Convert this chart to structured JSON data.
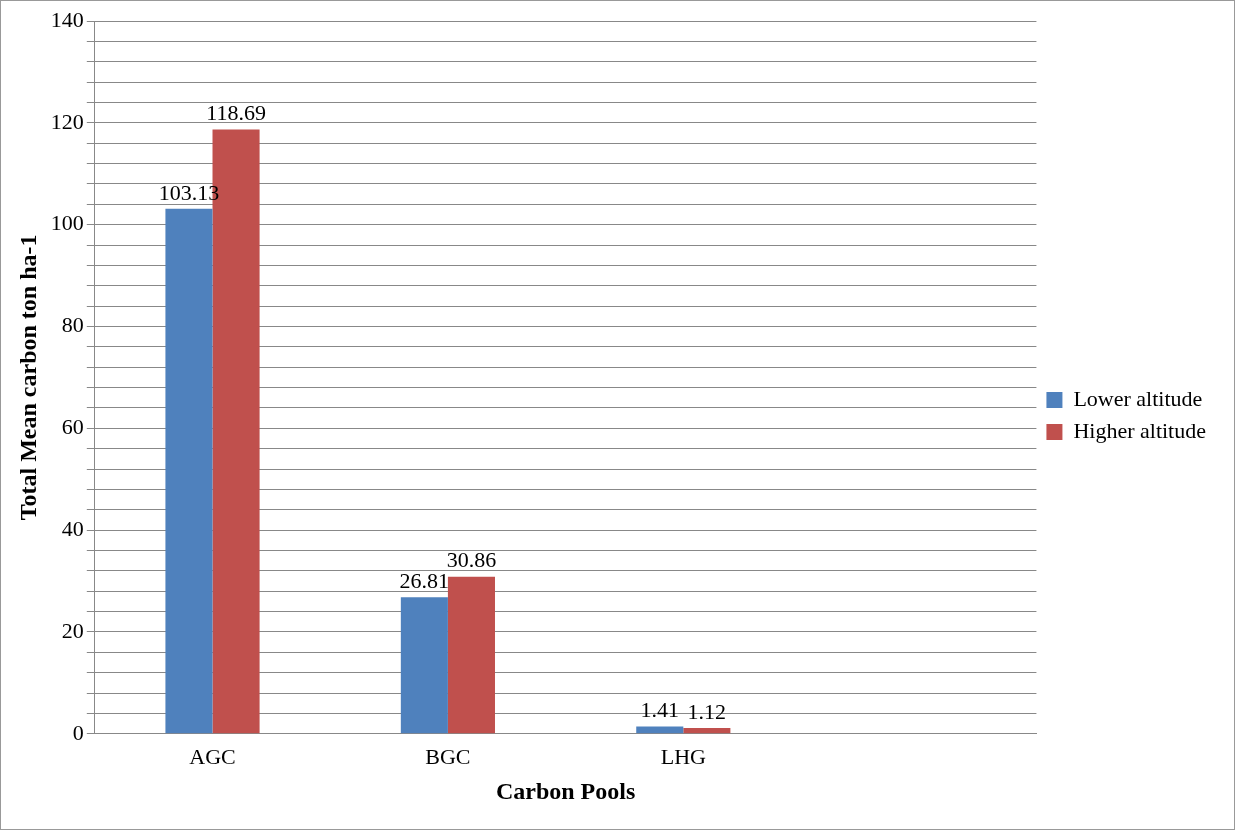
{
  "chart_data": {
    "type": "bar",
    "xlabel": "Carbon Pools",
    "ylabel": "Total Mean carbon ton ha-1",
    "categories": [
      "AGC",
      "BGC",
      "LHG",
      null
    ],
    "series": [
      {
        "name": "Lower altitude",
        "color": "#4f81bd",
        "values": [
          103.13,
          26.81,
          1.41,
          null
        ]
      },
      {
        "name": "Higher altitude",
        "color": "#c0504d",
        "values": [
          118.69,
          30.86,
          1.12,
          null
        ]
      }
    ],
    "ylim": [
      0,
      140
    ],
    "yticks": [
      0,
      {
        "value": 4,
        "label": null
      },
      {
        "value": 8,
        "label": null
      },
      {
        "value": 12,
        "label": null
      },
      {
        "value": 16,
        "label": null
      },
      20,
      {
        "value": 24,
        "label": null
      },
      {
        "value": 28,
        "label": null
      },
      {
        "value": 32,
        "label": null
      },
      {
        "value": 36,
        "label": null
      },
      40,
      {
        "value": 44,
        "label": null
      },
      {
        "value": 48,
        "label": null
      },
      {
        "value": 52,
        "label": null
      },
      {
        "value": 56,
        "label": null
      },
      60,
      {
        "value": 64,
        "label": null
      },
      {
        "value": 68,
        "label": null
      },
      {
        "value": 72,
        "label": null
      },
      {
        "value": 76,
        "label": null
      },
      80,
      {
        "value": 84,
        "label": null
      },
      {
        "value": 88,
        "label": null
      },
      {
        "value": 92,
        "label": null
      },
      {
        "value": 96,
        "label": null
      },
      100,
      {
        "value": 104,
        "label": null
      },
      {
        "value": 108,
        "label": null
      },
      {
        "value": 112,
        "label": null
      },
      {
        "value": 116,
        "label": null
      },
      120,
      {
        "value": 124,
        "label": null
      },
      {
        "value": 128,
        "label": null
      },
      {
        "value": 132,
        "label": null
      },
      {
        "value": 136,
        "label": null
      },
      140
    ],
    "grid": "y",
    "legend": "right",
    "data_labels": true
  }
}
